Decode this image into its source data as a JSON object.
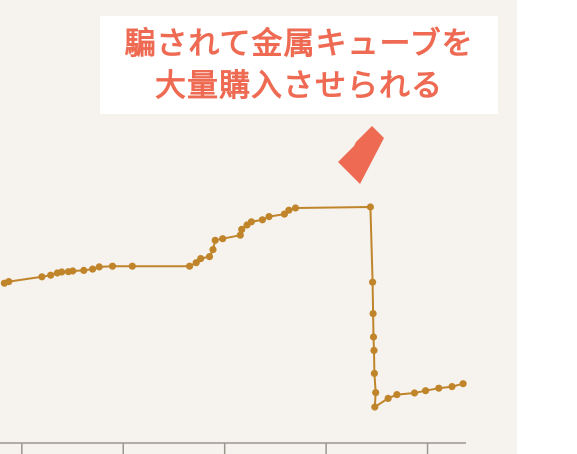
{
  "colors": {
    "series": "#c0852b",
    "annotation": "#ee6a52",
    "axis": "#9a968e",
    "background": "#f6f3ee"
  },
  "annotation": {
    "line1": "騙されて金属キューブを",
    "line2": "大量購入させられる",
    "arrow_icon": "arrow-down-left-icon"
  },
  "chart_data": {
    "type": "line",
    "title": "",
    "xlabel": "",
    "ylabel": "",
    "grid": false,
    "legend": "none",
    "xlim": [
      0,
      100
    ],
    "ylim": [
      0,
      100
    ],
    "xticks": [
      2,
      25,
      48,
      71,
      94
    ],
    "series": [
      {
        "name": "",
        "points": [
          [
            1,
            49
          ],
          [
            2,
            49.5
          ],
          [
            9.5,
            51
          ],
          [
            11.5,
            51.5
          ],
          [
            13,
            52.2
          ],
          [
            14,
            52.5
          ],
          [
            15.5,
            52.6
          ],
          [
            16.5,
            52.8
          ],
          [
            19,
            53
          ],
          [
            21,
            53.4
          ],
          [
            22.5,
            54.1
          ],
          [
            25.5,
            54.3
          ],
          [
            30,
            54.3
          ],
          [
            43,
            54.3
          ],
          [
            44.5,
            55.4
          ],
          [
            45.5,
            56.7
          ],
          [
            47.5,
            57.3
          ],
          [
            48.3,
            59.5
          ],
          [
            48.8,
            62.4
          ],
          [
            50.5,
            62.9
          ],
          [
            54.5,
            64
          ],
          [
            54.8,
            65.8
          ],
          [
            56,
            67.2
          ],
          [
            57,
            68.2
          ],
          [
            59.5,
            68.8
          ],
          [
            61,
            69.8
          ],
          [
            64.5,
            70.6
          ],
          [
            65.5,
            71.8
          ],
          [
            67,
            72.5
          ],
          [
            84,
            72.8
          ],
          [
            84.5,
            49.3
          ],
          [
            84.6,
            39.5
          ],
          [
            84.7,
            32.2
          ],
          [
            84.8,
            28
          ],
          [
            84.9,
            20.8
          ],
          [
            85.2,
            14.8
          ],
          [
            85,
            10.3
          ],
          [
            88,
            13
          ],
          [
            90,
            14.2
          ],
          [
            94,
            14.7
          ],
          [
            96.5,
            15.4
          ],
          [
            99.5,
            16.2
          ],
          [
            102.5,
            16.7
          ],
          [
            105,
            17.6
          ]
        ]
      }
    ]
  }
}
